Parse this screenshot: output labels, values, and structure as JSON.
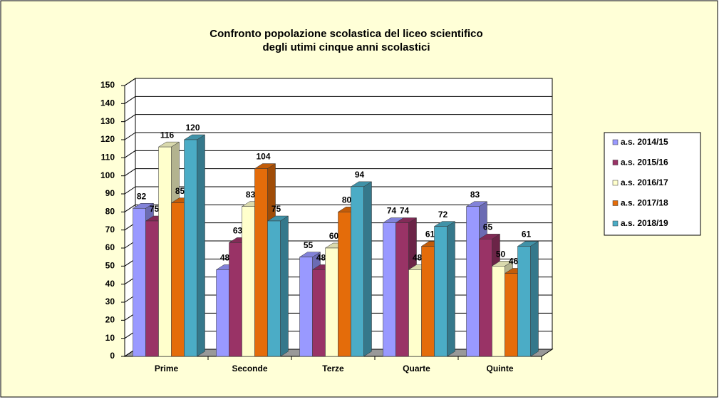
{
  "chart_data": {
    "type": "bar3d",
    "title": [
      "Confronto popolazione scolastica  del liceo scientifico",
      "degli utimi cinque anni  scolastici"
    ],
    "categories": [
      "Prime",
      "Seconde",
      "Terze",
      "Quarte",
      "Quinte"
    ],
    "series": [
      {
        "name": "a.s. 2014/15",
        "color": "#9999ff",
        "values": [
          82,
          48,
          55,
          74,
          83
        ]
      },
      {
        "name": "a.s. 2015/16",
        "color": "#993366",
        "values": [
          75,
          63,
          48,
          74,
          65
        ]
      },
      {
        "name": "a.s. 2016/17",
        "color": "#ffffcc",
        "values": [
          116,
          83,
          60,
          48,
          50
        ]
      },
      {
        "name": "a.s. 2017/18",
        "color": "#e46c0a",
        "values": [
          85,
          104,
          80,
          61,
          46
        ]
      },
      {
        "name": "a.s. 2018/19",
        "color": "#4bacc6",
        "values": [
          120,
          75,
          94,
          72,
          61
        ]
      }
    ],
    "ylim": [
      0,
      150
    ],
    "yticks": [
      0,
      10,
      20,
      30,
      40,
      50,
      60,
      70,
      80,
      90,
      100,
      110,
      120,
      130,
      140,
      150
    ],
    "grid": true,
    "legend": "right"
  }
}
